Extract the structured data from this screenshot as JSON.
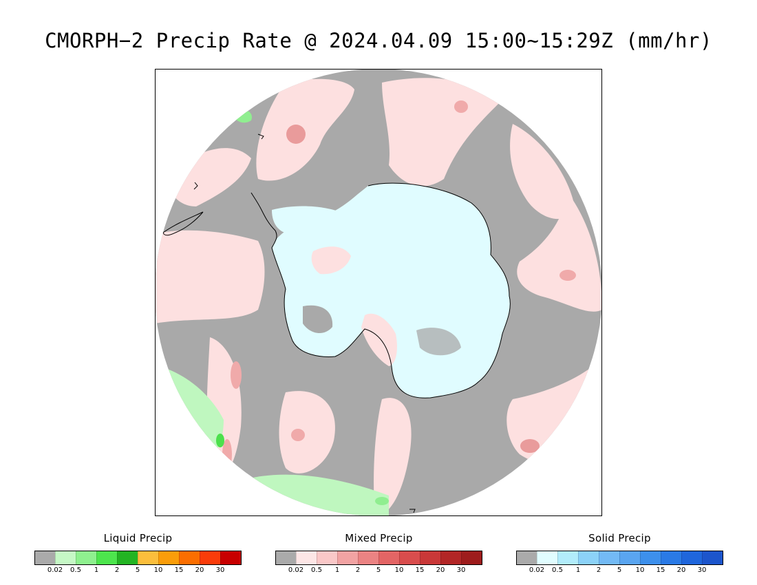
{
  "title": "CMORPH−2 Precip Rate @ 2024.04.09 15:00~15:29Z (mm/hr)",
  "map": {
    "region": "Antarctica / Southern Ocean polar stereographic",
    "colors": {
      "background_no_precip": "#a9a9a9",
      "mixed_light": "#fde0e0",
      "mixed_medium": "#f2a9a9",
      "mixed_heavy": "#e37a7a",
      "solid_light": "#e0fcff",
      "liquid_light": "#bff7bf",
      "liquid_medium": "#90ee90",
      "liquid_heavy": "#4ce04c",
      "coastline": "#000000",
      "frame": "#000000"
    }
  },
  "legends": [
    {
      "id": "liquid",
      "title": "Liquid Precip",
      "colors": [
        "#aaaaaa",
        "#c6f8c6",
        "#8ff08f",
        "#4de54d",
        "#23b423",
        "#fbbe3c",
        "#fa9d0a",
        "#fb6e00",
        "#fa3c0a",
        "#c80000"
      ],
      "ticks": [
        "0.02",
        "0.5",
        "1",
        "2",
        "5",
        "10",
        "15",
        "20",
        "30"
      ]
    },
    {
      "id": "mixed",
      "title": "Mixed Precip",
      "colors": [
        "#aaaaaa",
        "#fde6e6",
        "#fac8c8",
        "#f2a3a3",
        "#eb8383",
        "#e36565",
        "#d94d4d",
        "#c93838",
        "#b22626",
        "#9e1c1c"
      ],
      "ticks": [
        "0.02",
        "0.5",
        "1",
        "2",
        "5",
        "10",
        "15",
        "20",
        "30"
      ]
    },
    {
      "id": "solid",
      "title": "Solid Precip",
      "colors": [
        "#aaaaaa",
        "#e1fdff",
        "#b2ecfb",
        "#8cd2f8",
        "#73baf5",
        "#5aa5f0",
        "#3d90ec",
        "#2a7ae6",
        "#1f66dc",
        "#1c55cc"
      ],
      "ticks": [
        "0.02",
        "0.5",
        "1",
        "2",
        "5",
        "10",
        "15",
        "20",
        "30"
      ]
    }
  ]
}
